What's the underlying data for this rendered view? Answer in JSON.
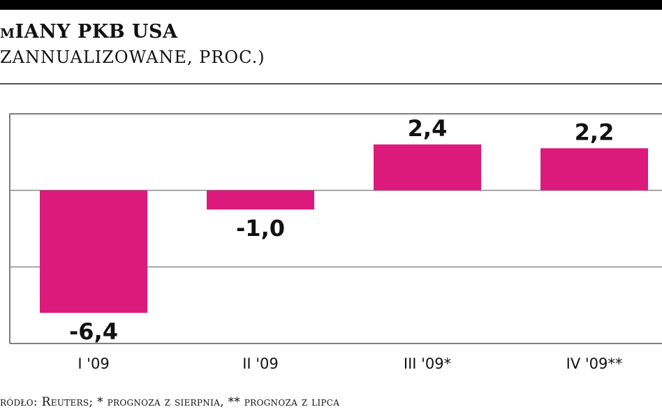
{
  "header": {
    "title": "mIANY PKB USA",
    "subtitle": "ZANNUALIZOWANE, PROC.)"
  },
  "footer": {
    "source": "ródło: Reuters; * prognoza z sierpnia, ** prognoza z lipca"
  },
  "colors": {
    "bar": "#dc1a7b",
    "grid": "#8a8a8a",
    "frame": "#555555",
    "text": "#111111"
  },
  "chart_data": {
    "type": "bar",
    "categories": [
      "I '09",
      "II '09",
      "III '09*",
      "IV '09**"
    ],
    "values": [
      -6.4,
      -1.0,
      2.4,
      2.2
    ],
    "value_labels": [
      "-6,4",
      "-1,0",
      "2,4",
      "2,2"
    ],
    "title": "mIANY PKB USA",
    "subtitle": "ZANNUALIZOWANE, PROC.)",
    "ylim": [
      -8,
      4
    ],
    "gridlines": [
      0,
      -4
    ],
    "grid": true,
    "legend": "none"
  }
}
